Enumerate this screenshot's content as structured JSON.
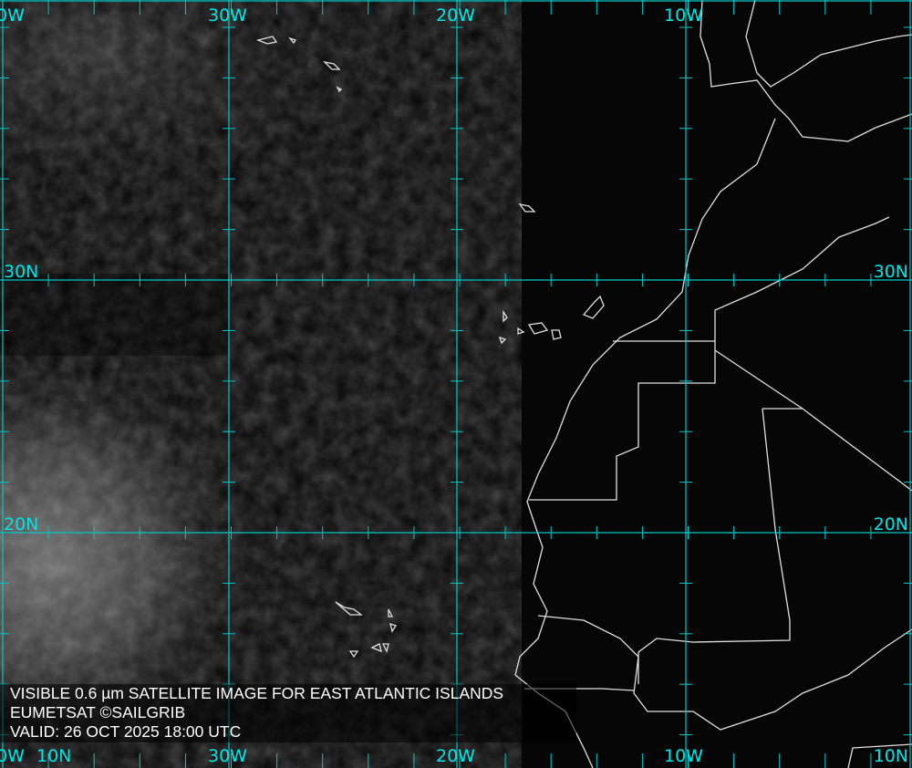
{
  "product": {
    "title": "VISIBLE 0.6 µm SATELLITE IMAGE FOR EAST ATLANTIC ISLANDS",
    "credit": "EUMETSAT ©SAILGRIB",
    "valid": "VALID:  26 OCT 2025 18:00 UTC"
  },
  "grid": {
    "color": "#00e5e5",
    "top_labels": [
      "0W",
      "30W",
      "20W",
      "10W"
    ],
    "bottom_labels": [
      "0W",
      "30W",
      "20W",
      "10W",
      "10N"
    ],
    "left_labels": [
      "30N",
      "20N",
      "10N"
    ],
    "right_labels": [
      "30N",
      "20N"
    ]
  },
  "coastline_color": "#e0e0e0"
}
